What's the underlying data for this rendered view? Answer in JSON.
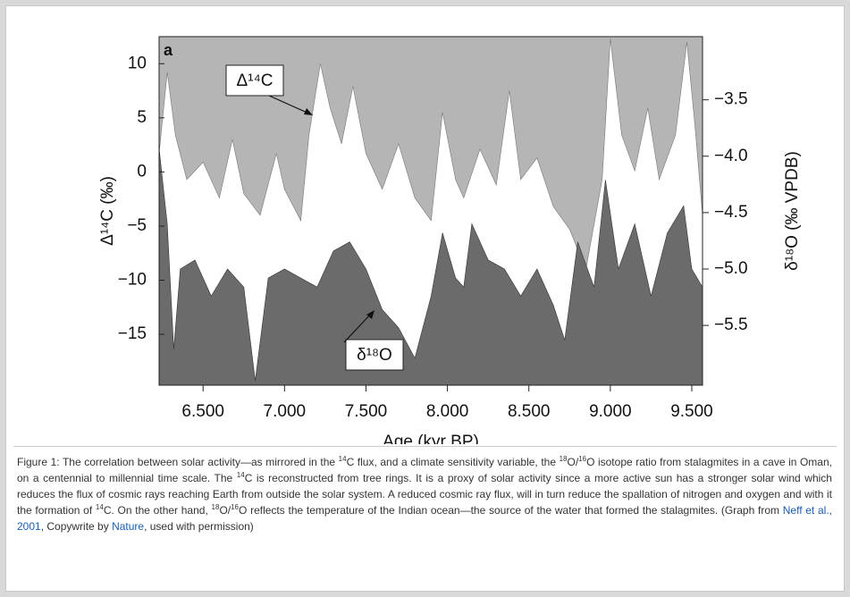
{
  "chart_data": {
    "type": "area",
    "panel_label": "a",
    "xlabel": "Age (kyr BP)",
    "ylabel": "Δ¹⁴C (‰)",
    "y2label": "δ¹⁸O (‰ VPDB)",
    "annotations": [
      "Δ¹⁴C",
      "δ¹⁸O"
    ],
    "plot_background": "#b5b5b5",
    "xlim": [
      6.23,
      9.566
    ],
    "xticks": [
      {
        "value": 6.5,
        "label": "6.500"
      },
      {
        "value": 7,
        "label": "7.000"
      },
      {
        "value": 7.5,
        "label": "7.500"
      },
      {
        "value": 8,
        "label": "8.000"
      },
      {
        "value": 8.5,
        "label": "8.500"
      },
      {
        "value": 9,
        "label": "9.000"
      },
      {
        "value": 9.5,
        "label": "9.500"
      }
    ],
    "ylim": [
      -19.7,
      12.5
    ],
    "yticks": [
      10,
      5,
      0,
      {
        "value": -5,
        "label": "−5"
      },
      {
        "value": -10,
        "label": "−10"
      },
      {
        "value": -15,
        "label": "−15"
      }
    ],
    "y2lim": [
      -6.03,
      -2.94
    ],
    "y2ticks": [
      {
        "value": -3.5,
        "label": "−3.5"
      },
      {
        "value": -4,
        "label": "−4.0"
      },
      {
        "value": -4.5,
        "label": "−4.5"
      },
      {
        "value": -5,
        "label": "−5.0"
      },
      {
        "value": -5.5,
        "label": "−5.5"
      }
    ],
    "series": [
      {
        "name": "Δ¹⁴C",
        "color": "#ffffff",
        "x": [
          6.23,
          6.28,
          6.33,
          6.4,
          6.5,
          6.6,
          6.68,
          6.75,
          6.85,
          6.95,
          7.0,
          7.1,
          7.15,
          7.22,
          7.28,
          7.35,
          7.42,
          7.5,
          7.6,
          7.7,
          7.8,
          7.9,
          7.97,
          8.05,
          8.1,
          8.2,
          8.3,
          8.38,
          8.45,
          8.55,
          8.65,
          8.75,
          8.85,
          8.95,
          9.0,
          9.07,
          9.15,
          9.23,
          9.3,
          9.4,
          9.47,
          9.52,
          9.566
        ],
        "values": [
          1.7,
          9.2,
          3.4,
          -0.7,
          0.9,
          -2.4,
          3,
          -2,
          -4,
          1.7,
          -1.6,
          -4.5,
          3.4,
          10,
          5.9,
          2.6,
          7.9,
          1.7,
          -1.6,
          2.6,
          -2.4,
          -4.5,
          5.5,
          -0.7,
          -2.4,
          2.1,
          -1.2,
          7.5,
          -0.7,
          1.3,
          -3.2,
          -5.3,
          -9,
          -0.7,
          12.3,
          3.4,
          0.1,
          5.9,
          -0.7,
          3.4,
          12,
          4.2,
          -4
        ]
      },
      {
        "name": "δ¹⁸O",
        "color": "#6b6b6b",
        "axis": "y2",
        "x": [
          6.23,
          6.28,
          6.32,
          6.36,
          6.45,
          6.55,
          6.65,
          6.75,
          6.82,
          6.9,
          7.0,
          7.1,
          7.2,
          7.3,
          7.4,
          7.5,
          7.6,
          7.7,
          7.8,
          7.9,
          7.97,
          8.05,
          8.1,
          8.15,
          8.25,
          8.35,
          8.45,
          8.55,
          8.65,
          8.72,
          8.8,
          8.9,
          8.97,
          9.05,
          9.15,
          9.25,
          9.35,
          9.45,
          9.5,
          9.566
        ],
        "values": [
          -3.93,
          -4.6,
          -5.71,
          -5.0,
          -4.92,
          -5.24,
          -5.0,
          -5.16,
          -5.99,
          -5.08,
          -5.0,
          -5.08,
          -5.16,
          -4.84,
          -4.76,
          -5.0,
          -5.36,
          -5.52,
          -5.79,
          -5.24,
          -4.68,
          -5.08,
          -5.16,
          -4.6,
          -4.92,
          -5.0,
          -5.24,
          -5.0,
          -5.32,
          -5.63,
          -4.76,
          -5.16,
          -4.21,
          -5.0,
          -4.6,
          -5.24,
          -4.68,
          -4.44,
          -5.0,
          -5.16
        ]
      }
    ]
  },
  "caption": {
    "parts": [
      {
        "text": "Figure 1: The correlation between solar activity—as mirrored in the "
      },
      {
        "text": "14",
        "sup": true
      },
      {
        "text": "C flux, and a climate sensitivity variable, the "
      },
      {
        "text": "18",
        "sup": true
      },
      {
        "text": "O/"
      },
      {
        "text": "16",
        "sup": true
      },
      {
        "text": "O isotope ratio from stalagmites in a cave in Oman, on a centennial to millennial time scale. The "
      },
      {
        "text": "14",
        "sup": true
      },
      {
        "text": "C is reconstructed from tree rings. It is a proxy of solar activity since a more active sun has a stronger solar wind which reduces the flux of cosmic rays reaching Earth from outside the solar system. A reduced cosmic ray flux, will in turn reduce the spallation of nitrogen and oxygen and with it the formation of "
      },
      {
        "text": "14",
        "sup": true
      },
      {
        "text": "C. On the other hand, "
      },
      {
        "text": "18",
        "sup": true
      },
      {
        "text": "O/"
      },
      {
        "text": "16",
        "sup": true
      },
      {
        "text": "O reflects the temperature of the Indian ocean—the source of the water that formed the stalagmites. (Graph from "
      },
      {
        "text": "Neff et al., 2001",
        "link": true
      },
      {
        "text": ", Copywrite by "
      },
      {
        "text": "Nature",
        "link": true
      },
      {
        "text": ", used with permission)"
      }
    ]
  }
}
